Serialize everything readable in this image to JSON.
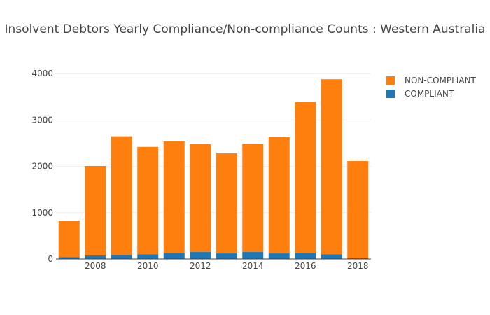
{
  "chart_data": {
    "type": "bar",
    "stacked": true,
    "title": "Insolvent Debtors Yearly Compliance/Non-compliance Counts : Western Australia",
    "xlabel": "",
    "ylabel": "",
    "categories": [
      2007,
      2008,
      2009,
      2010,
      2011,
      2012,
      2013,
      2014,
      2015,
      2016,
      2017,
      2018
    ],
    "x_ticks": [
      "2008",
      "2010",
      "2012",
      "2014",
      "2016",
      "2018"
    ],
    "y_ticks": [
      "0",
      "1000",
      "2000",
      "3000",
      "4000"
    ],
    "ylim": [
      0,
      4200
    ],
    "grid": true,
    "legend_position": "top-right",
    "series": [
      {
        "name": "COMPLIANT",
        "color": "#1f77b4",
        "values": [
          40,
          75,
          85,
          100,
          130,
          150,
          120,
          150,
          120,
          130,
          100,
          15
        ]
      },
      {
        "name": "NON-COMPLIANT",
        "color": "#ff7f0e",
        "values": [
          790,
          1935,
          2565,
          2320,
          2410,
          2330,
          2160,
          2340,
          2510,
          3260,
          3780,
          2100
        ]
      }
    ]
  }
}
